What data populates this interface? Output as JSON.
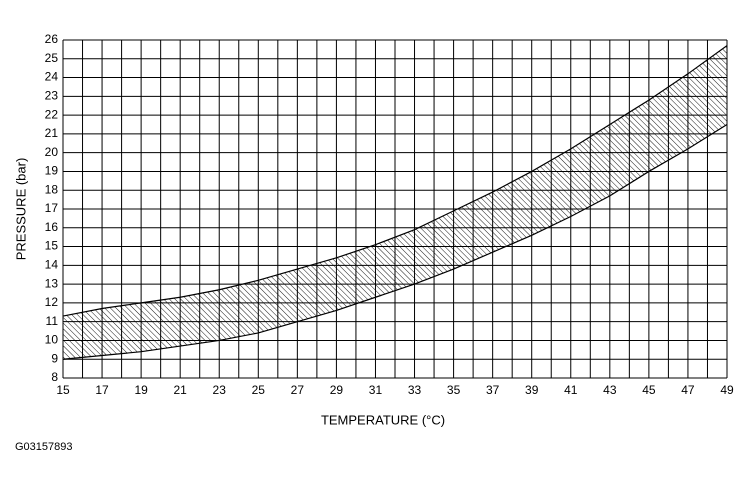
{
  "chart_data": {
    "type": "band",
    "x_label": "TEMPERATURE (°C)",
    "y_label": "PRESSURE (bar)",
    "code": "G03157893",
    "x": [
      15,
      17,
      19,
      21,
      23,
      25,
      27,
      29,
      31,
      33,
      35,
      37,
      39,
      41,
      43,
      45,
      47,
      49
    ],
    "upper": [
      11.3,
      11.7,
      12.0,
      12.3,
      12.7,
      13.2,
      13.8,
      14.4,
      15.1,
      15.9,
      16.9,
      17.9,
      19.0,
      20.2,
      21.5,
      22.8,
      24.2,
      25.7
    ],
    "lower": [
      9.0,
      9.2,
      9.4,
      9.7,
      10.0,
      10.4,
      11.0,
      11.6,
      12.3,
      13.0,
      13.8,
      14.7,
      15.6,
      16.6,
      17.7,
      19.0,
      20.2,
      21.5
    ],
    "color": "#000000",
    "xlim": [
      15,
      49
    ],
    "ylim": [
      8,
      26
    ],
    "xticks": [
      15,
      17,
      19,
      21,
      23,
      25,
      27,
      29,
      31,
      33,
      35,
      37,
      39,
      41,
      43,
      45,
      47,
      49
    ],
    "x_minor_grid": [
      16,
      18,
      20,
      22,
      24,
      26,
      28,
      30,
      32,
      34,
      36,
      38,
      40,
      42,
      44,
      46,
      48
    ],
    "yticks": [
      8,
      9,
      10,
      11,
      12,
      13,
      14,
      15,
      16,
      17,
      18,
      19,
      20,
      21,
      22,
      23,
      24,
      25,
      26
    ],
    "grid": true
  }
}
